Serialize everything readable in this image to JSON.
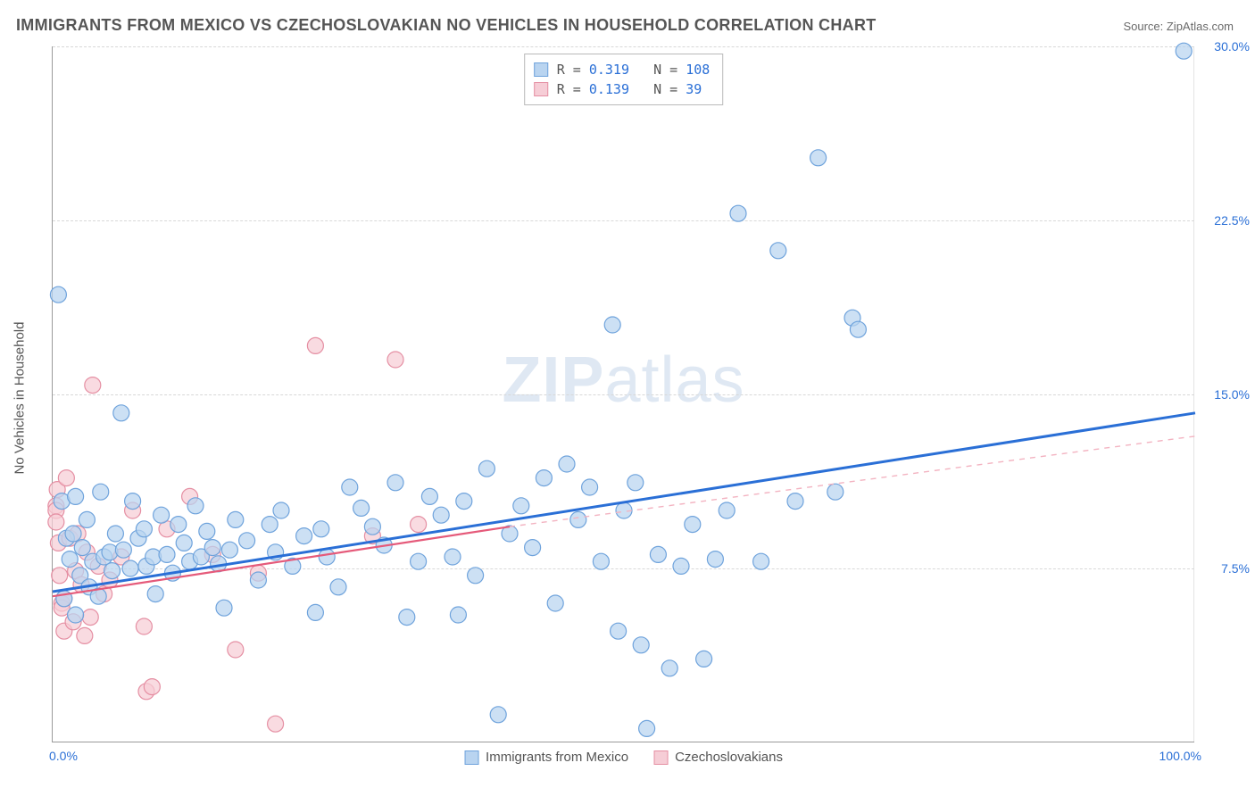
{
  "title": "IMMIGRANTS FROM MEXICO VS CZECHOSLOVAKIAN NO VEHICLES IN HOUSEHOLD CORRELATION CHART",
  "source": "Source: ZipAtlas.com",
  "ylabel": "No Vehicles in Household",
  "watermark_a": "ZIP",
  "watermark_b": "atlas",
  "chart": {
    "type": "scatter-with-trendlines",
    "xlim": [
      0,
      100
    ],
    "ylim": [
      0,
      30
    ],
    "yticks": [
      7.5,
      15.0,
      22.5,
      30.0
    ],
    "ytick_labels": [
      "7.5%",
      "15.0%",
      "22.5%",
      "30.0%"
    ],
    "xtick_left": "0.0%",
    "xtick_right": "100.0%",
    "background": "#ffffff",
    "grid_color": "#d8d8d8",
    "series": [
      {
        "name": "Immigrants from Mexico",
        "color_fill": "#b9d4f0",
        "color_stroke": "#6fa3dc",
        "trend_color": "#2a6fd6",
        "trend_dashed": false,
        "trend_width": 3,
        "R": "0.319",
        "N": "108",
        "trend_y0": 6.5,
        "trend_x1": 100,
        "trend_y1": 14.2,
        "marker_radius": 9,
        "points": [
          [
            0.5,
            19.3
          ],
          [
            0.8,
            10.4
          ],
          [
            1.0,
            6.2
          ],
          [
            1.2,
            8.8
          ],
          [
            1.5,
            7.9
          ],
          [
            1.8,
            9.0
          ],
          [
            2.0,
            10.6
          ],
          [
            2.0,
            5.5
          ],
          [
            2.4,
            7.2
          ],
          [
            2.6,
            8.4
          ],
          [
            3.0,
            9.6
          ],
          [
            3.2,
            6.7
          ],
          [
            3.5,
            7.8
          ],
          [
            4.0,
            6.3
          ],
          [
            4.2,
            10.8
          ],
          [
            4.5,
            8.0
          ],
          [
            5.0,
            8.2
          ],
          [
            5.2,
            7.4
          ],
          [
            5.5,
            9.0
          ],
          [
            6.0,
            14.2
          ],
          [
            6.2,
            8.3
          ],
          [
            6.8,
            7.5
          ],
          [
            7.0,
            10.4
          ],
          [
            7.5,
            8.8
          ],
          [
            8.0,
            9.2
          ],
          [
            8.2,
            7.6
          ],
          [
            8.8,
            8.0
          ],
          [
            9.0,
            6.4
          ],
          [
            9.5,
            9.8
          ],
          [
            10.0,
            8.1
          ],
          [
            10.5,
            7.3
          ],
          [
            11.0,
            9.4
          ],
          [
            11.5,
            8.6
          ],
          [
            12.0,
            7.8
          ],
          [
            12.5,
            10.2
          ],
          [
            13.0,
            8.0
          ],
          [
            13.5,
            9.1
          ],
          [
            14.0,
            8.4
          ],
          [
            14.5,
            7.7
          ],
          [
            15.0,
            5.8
          ],
          [
            15.5,
            8.3
          ],
          [
            16.0,
            9.6
          ],
          [
            17.0,
            8.7
          ],
          [
            18.0,
            7.0
          ],
          [
            19.0,
            9.4
          ],
          [
            19.5,
            8.2
          ],
          [
            20.0,
            10.0
          ],
          [
            21.0,
            7.6
          ],
          [
            22.0,
            8.9
          ],
          [
            23.0,
            5.6
          ],
          [
            23.5,
            9.2
          ],
          [
            24.0,
            8.0
          ],
          [
            25.0,
            6.7
          ],
          [
            26.0,
            11.0
          ],
          [
            27.0,
            10.1
          ],
          [
            28.0,
            9.3
          ],
          [
            29.0,
            8.5
          ],
          [
            30.0,
            11.2
          ],
          [
            31.0,
            5.4
          ],
          [
            32.0,
            7.8
          ],
          [
            33.0,
            10.6
          ],
          [
            34.0,
            9.8
          ],
          [
            35.0,
            8.0
          ],
          [
            35.5,
            5.5
          ],
          [
            36.0,
            10.4
          ],
          [
            37.0,
            7.2
          ],
          [
            38.0,
            11.8
          ],
          [
            39.0,
            1.2
          ],
          [
            40.0,
            9.0
          ],
          [
            41.0,
            10.2
          ],
          [
            42.0,
            8.4
          ],
          [
            43.0,
            11.4
          ],
          [
            44.0,
            6.0
          ],
          [
            45.0,
            12.0
          ],
          [
            46.0,
            9.6
          ],
          [
            47.0,
            11.0
          ],
          [
            48.0,
            7.8
          ],
          [
            49.0,
            18.0
          ],
          [
            49.5,
            4.8
          ],
          [
            50.0,
            10.0
          ],
          [
            51.0,
            11.2
          ],
          [
            51.5,
            4.2
          ],
          [
            52.0,
            0.6
          ],
          [
            53.0,
            8.1
          ],
          [
            54.0,
            3.2
          ],
          [
            55.0,
            7.6
          ],
          [
            56.0,
            9.4
          ],
          [
            57.0,
            3.6
          ],
          [
            58.0,
            7.9
          ],
          [
            59.0,
            10.0
          ],
          [
            60.0,
            22.8
          ],
          [
            62.0,
            7.8
          ],
          [
            63.5,
            21.2
          ],
          [
            65.0,
            10.4
          ],
          [
            67.0,
            25.2
          ],
          [
            68.5,
            10.8
          ],
          [
            70.0,
            18.3
          ],
          [
            70.5,
            17.8
          ],
          [
            99.0,
            29.8
          ]
        ]
      },
      {
        "name": "Czechoslovakians",
        "color_fill": "#f6cdd6",
        "color_stroke": "#e58fa3",
        "trend_color": "#e55a7a",
        "trend_dashed": true,
        "trend_width": 2.2,
        "dash_extend_color": "#f3b3c1",
        "R": "0.139",
        "N": " 39",
        "trend_y0": 6.3,
        "trend_x1": 40,
        "trend_y1": 9.3,
        "extend_x1": 100,
        "extend_y1": 13.2,
        "marker_radius": 9,
        "points": [
          [
            0.3,
            10.2
          ],
          [
            0.3,
            10.0
          ],
          [
            0.3,
            9.5
          ],
          [
            0.4,
            10.9
          ],
          [
            0.5,
            8.6
          ],
          [
            0.6,
            7.2
          ],
          [
            0.8,
            6.0
          ],
          [
            0.8,
            5.8
          ],
          [
            1.0,
            6.2
          ],
          [
            1.0,
            4.8
          ],
          [
            1.2,
            11.4
          ],
          [
            1.5,
            8.8
          ],
          [
            1.8,
            5.2
          ],
          [
            2.0,
            7.4
          ],
          [
            2.2,
            9.0
          ],
          [
            2.5,
            6.8
          ],
          [
            2.8,
            4.6
          ],
          [
            3.0,
            8.2
          ],
          [
            3.3,
            5.4
          ],
          [
            3.5,
            15.4
          ],
          [
            4.0,
            7.6
          ],
          [
            4.5,
            6.4
          ],
          [
            5.0,
            7.0
          ],
          [
            6.0,
            8.0
          ],
          [
            7.0,
            10.0
          ],
          [
            8.0,
            5.0
          ],
          [
            8.2,
            2.2
          ],
          [
            8.7,
            2.4
          ],
          [
            10.0,
            9.2
          ],
          [
            12.0,
            10.6
          ],
          [
            14.0,
            8.1
          ],
          [
            16.0,
            4.0
          ],
          [
            18.0,
            7.3
          ],
          [
            19.5,
            0.8
          ],
          [
            23.0,
            17.1
          ],
          [
            28.0,
            8.9
          ],
          [
            30.0,
            16.5
          ],
          [
            32.0,
            9.4
          ]
        ]
      }
    ],
    "legend_bottom": [
      {
        "label": "Immigrants from Mexico",
        "fill": "#b9d4f0",
        "stroke": "#6fa3dc"
      },
      {
        "label": "Czechoslovakians",
        "fill": "#f6cdd6",
        "stroke": "#e58fa3"
      }
    ],
    "legend_top": [
      {
        "fill": "#b9d4f0",
        "stroke": "#6fa3dc",
        "R": "0.319",
        "N": "108"
      },
      {
        "fill": "#f6cdd6",
        "stroke": "#e58fa3",
        "R": "0.139",
        "N": " 39"
      }
    ]
  }
}
